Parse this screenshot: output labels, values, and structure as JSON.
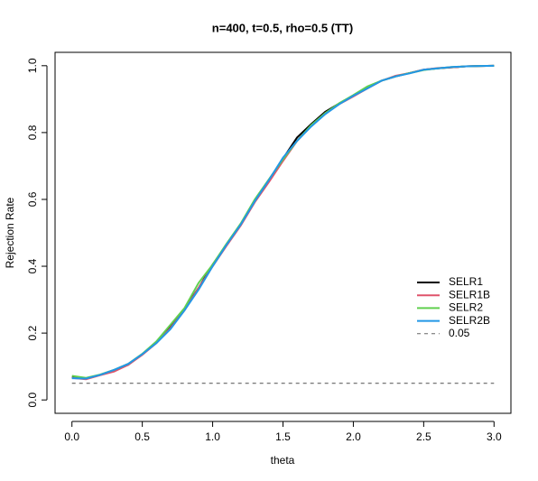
{
  "chart_data": {
    "type": "line",
    "title": "n=400, t=0.5, rho=0.5 (TT)",
    "x_label": "theta",
    "y_label": "Rejection Rate",
    "x": [
      0,
      0.1,
      0.2,
      0.3,
      0.4,
      0.5,
      0.6,
      0.7,
      0.8,
      0.9,
      1.0,
      1.1,
      1.2,
      1.3,
      1.4,
      1.5,
      1.6,
      1.7,
      1.8,
      1.9,
      2.0,
      2.1,
      2.2,
      2.3,
      2.4,
      2.5,
      2.6,
      2.7,
      2.8,
      2.9,
      3.0
    ],
    "series": [
      {
        "name": "SELR1",
        "color": "#000000",
        "values": [
          0.068,
          0.063,
          0.075,
          0.088,
          0.105,
          0.137,
          0.172,
          0.218,
          0.272,
          0.335,
          0.405,
          0.465,
          0.525,
          0.595,
          0.655,
          0.722,
          0.785,
          0.825,
          0.862,
          0.887,
          0.91,
          0.933,
          0.955,
          0.968,
          0.978,
          0.988,
          0.992,
          0.995,
          0.998,
          0.999,
          1.0
        ]
      },
      {
        "name": "SELR1B",
        "color": "#DF536B",
        "values": [
          0.066,
          0.062,
          0.074,
          0.085,
          0.105,
          0.135,
          0.17,
          0.215,
          0.268,
          0.335,
          0.4,
          0.462,
          0.522,
          0.592,
          0.652,
          0.715,
          0.775,
          0.82,
          0.858,
          0.885,
          0.908,
          0.932,
          0.955,
          0.97,
          0.978,
          0.988,
          0.993,
          0.995,
          0.998,
          0.999,
          1.0
        ]
      },
      {
        "name": "SELR2",
        "color": "#61D04F",
        "values": [
          0.072,
          0.066,
          0.076,
          0.09,
          0.108,
          0.138,
          0.175,
          0.225,
          0.275,
          0.35,
          0.405,
          0.468,
          0.528,
          0.6,
          0.66,
          0.72,
          0.775,
          0.822,
          0.858,
          0.888,
          0.912,
          0.938,
          0.955,
          0.968,
          0.978,
          0.987,
          0.992,
          0.996,
          0.998,
          0.999,
          1.0
        ]
      },
      {
        "name": "SELR2B",
        "color": "#2297E6",
        "values": [
          0.065,
          0.064,
          0.075,
          0.09,
          0.108,
          0.137,
          0.17,
          0.212,
          0.268,
          0.33,
          0.4,
          0.465,
          0.525,
          0.595,
          0.658,
          0.725,
          0.775,
          0.818,
          0.855,
          0.885,
          0.91,
          0.932,
          0.955,
          0.968,
          0.977,
          0.988,
          0.992,
          0.996,
          0.998,
          0.999,
          1.0
        ]
      }
    ],
    "reference_lines": [
      {
        "name": "0.05",
        "value": 0.05,
        "color": "#666666"
      }
    ],
    "xlim": [
      -0.12,
      3.12
    ],
    "ylim": [
      -0.04,
      1.04
    ],
    "xticks": [
      {
        "value": 0,
        "label": "0.0"
      },
      0.5,
      {
        "value": 1,
        "label": "1.0"
      },
      1.5,
      {
        "value": 2,
        "label": "2.0"
      },
      2.5,
      {
        "value": 3,
        "label": "3.0"
      }
    ],
    "yticks": [
      {
        "value": 0,
        "label": "0.0"
      },
      0.2,
      0.4,
      0.6,
      0.8,
      {
        "value": 1,
        "label": "1.0"
      }
    ]
  }
}
